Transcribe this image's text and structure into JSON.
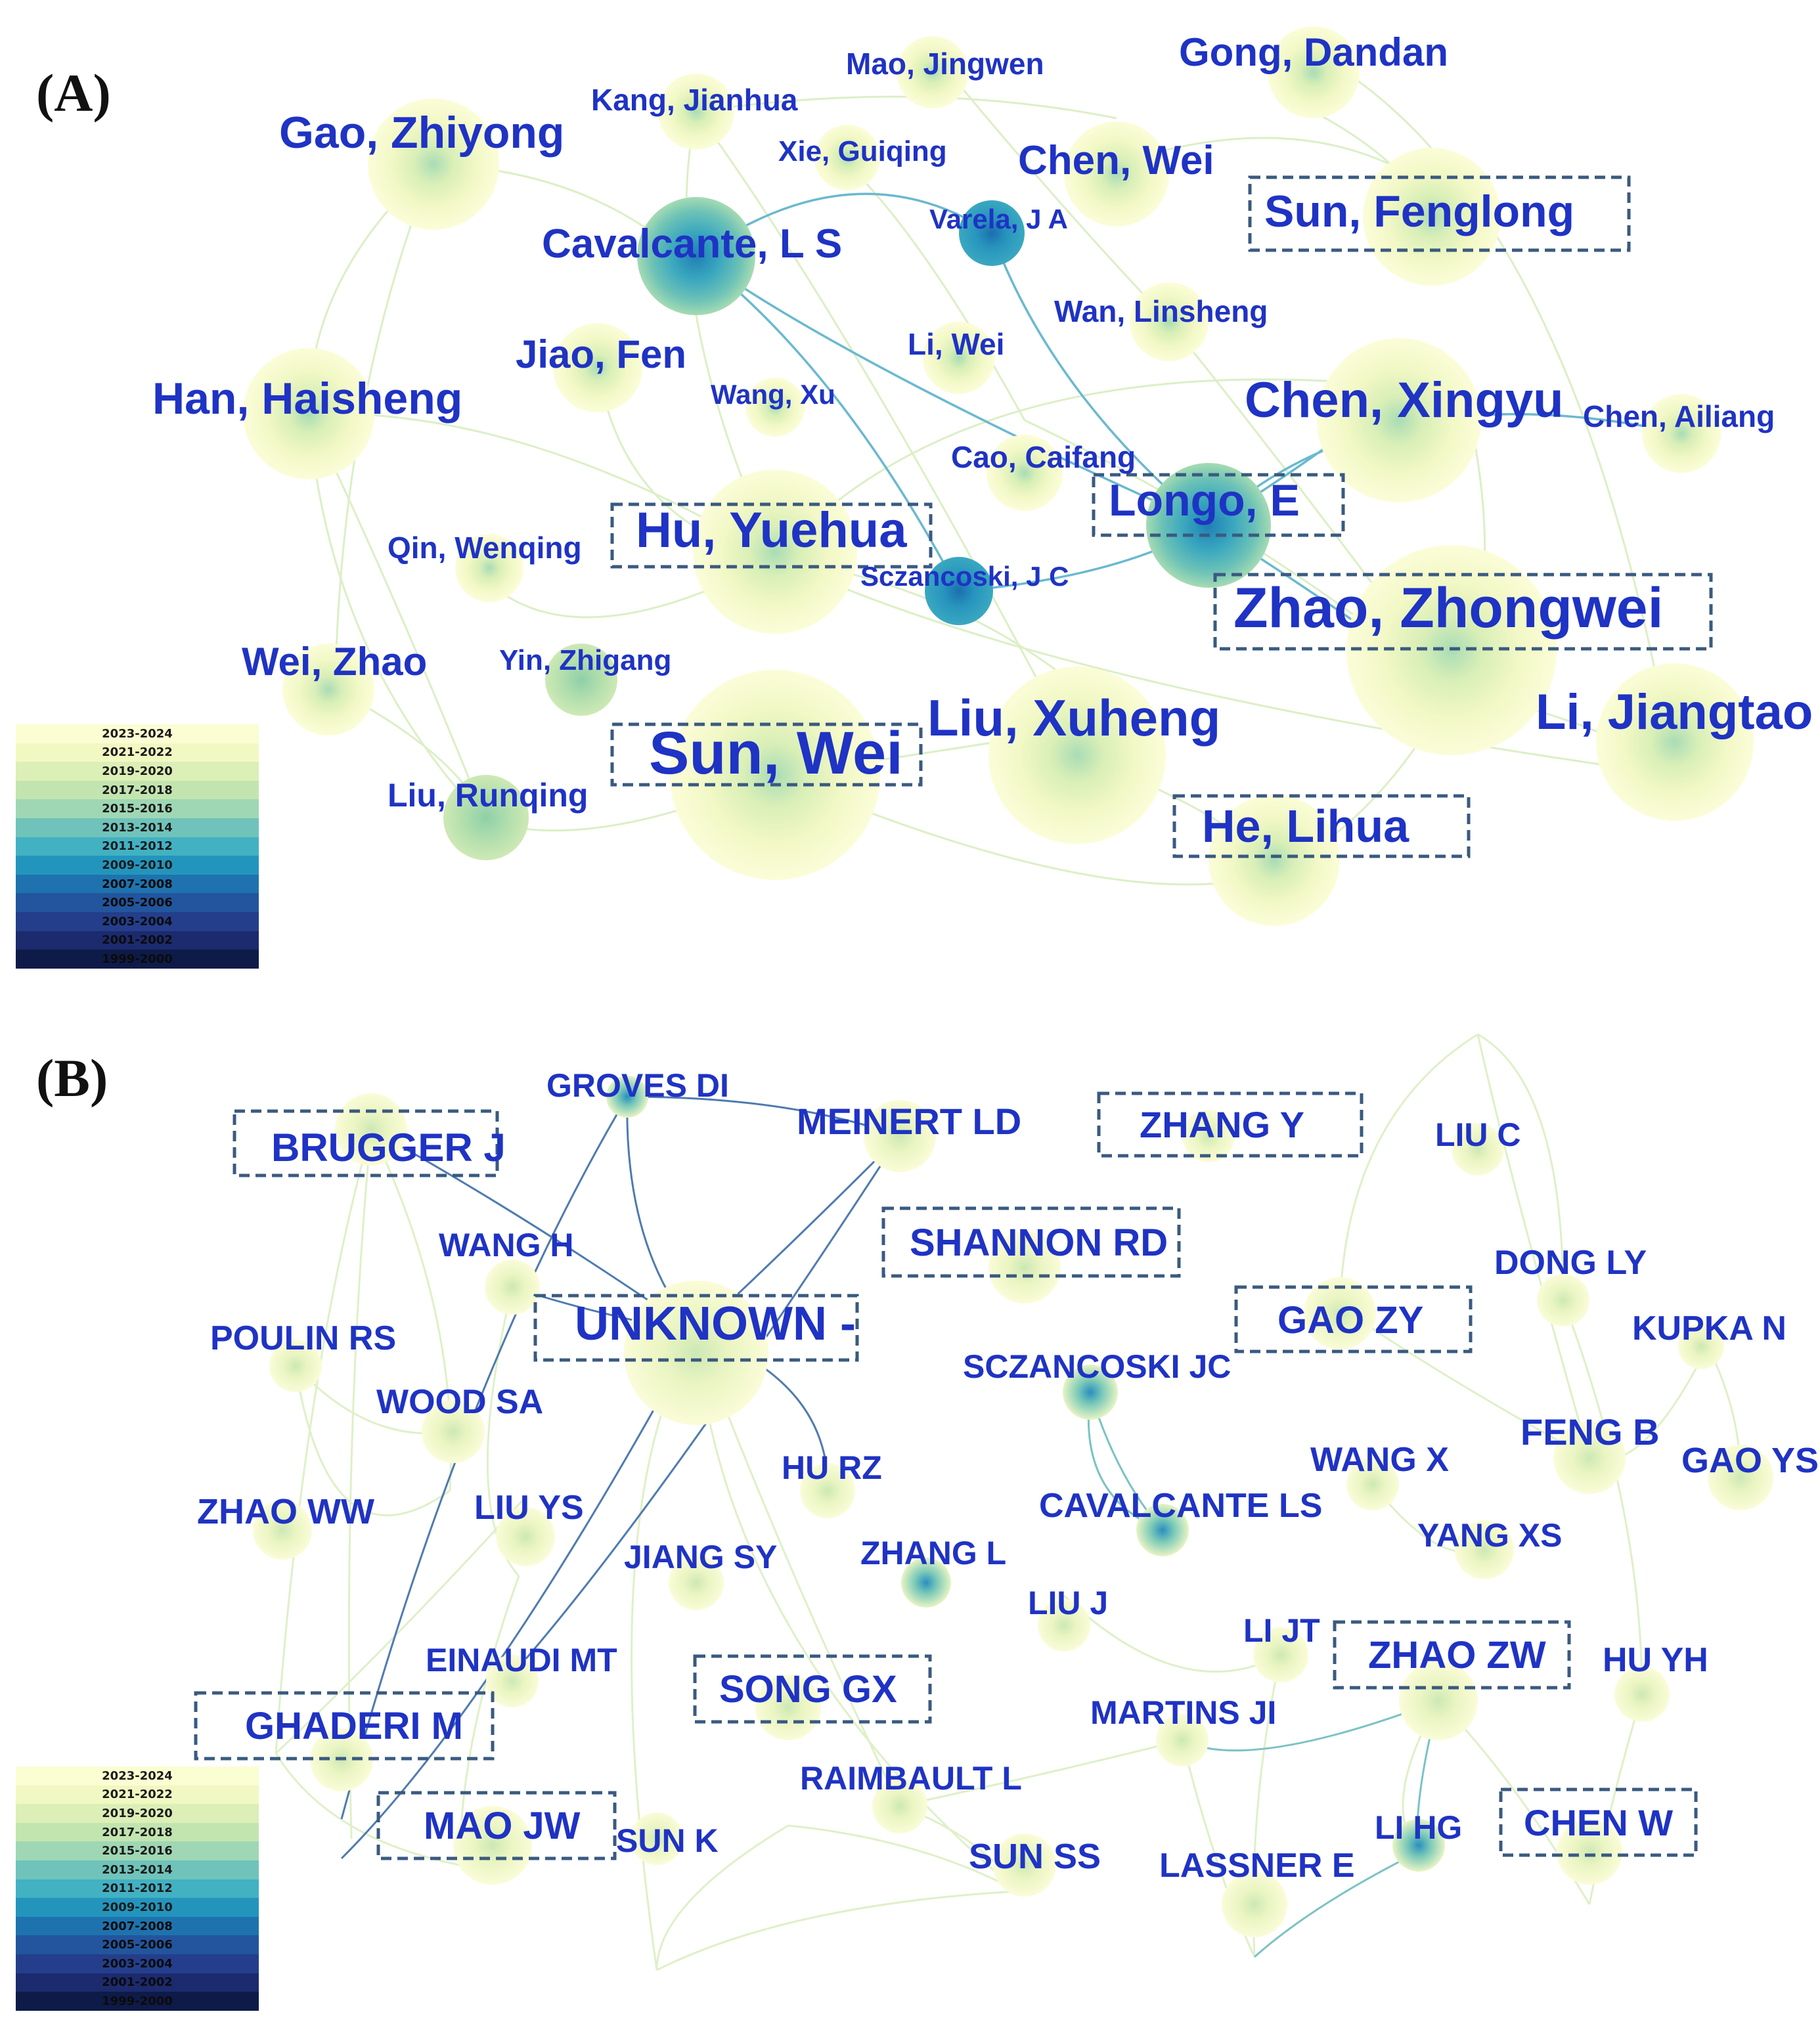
{
  "panel_a": {
    "label": "(A)",
    "nodes": [
      {
        "id": "gao-zhiyong",
        "label": "Gao, Zhiyong"
      },
      {
        "id": "kang-jianhua",
        "label": "Kang, Jianhua"
      },
      {
        "id": "mao-jingwen",
        "label": "Mao, Jingwen"
      },
      {
        "id": "gong-dandan",
        "label": "Gong, Dandan"
      },
      {
        "id": "xie-guiqing",
        "label": "Xie, Guiqing"
      },
      {
        "id": "chen-wei",
        "label": "Chen, Wei"
      },
      {
        "id": "sun-fenglong",
        "label": "Sun, Fenglong"
      },
      {
        "id": "cavalcante-ls",
        "label": "Cavalcante, L S"
      },
      {
        "id": "varela-ja",
        "label": "Varela, J A"
      },
      {
        "id": "wan-linsheng",
        "label": "Wan, Linsheng"
      },
      {
        "id": "li-wei",
        "label": "Li, Wei"
      },
      {
        "id": "jiao-fen",
        "label": "Jiao, Fen"
      },
      {
        "id": "han-haisheng",
        "label": "Han, Haisheng"
      },
      {
        "id": "wang-xu",
        "label": "Wang, Xu"
      },
      {
        "id": "chen-xingyu",
        "label": "Chen, Xingyu"
      },
      {
        "id": "chen-ailiang",
        "label": "Chen, Ailiang"
      },
      {
        "id": "cao-caifang",
        "label": "Cao, Caifang"
      },
      {
        "id": "longo-e",
        "label": "Longo, E"
      },
      {
        "id": "hu-yuehua",
        "label": "Hu, Yuehua"
      },
      {
        "id": "qin-wenqing",
        "label": "Qin, Wenqing"
      },
      {
        "id": "sczancoski-jc",
        "label": "Sczancoski, J C"
      },
      {
        "id": "zhao-zhongwei",
        "label": "Zhao, Zhongwei"
      },
      {
        "id": "wei-zhao",
        "label": "Wei, Zhao"
      },
      {
        "id": "yin-zhigang",
        "label": "Yin, Zhigang"
      },
      {
        "id": "liu-xuheng",
        "label": "Liu, Xuheng"
      },
      {
        "id": "li-jiangtao",
        "label": "Li, Jiangtao"
      },
      {
        "id": "sun-wei",
        "label": "Sun, Wei"
      },
      {
        "id": "liu-runqing",
        "label": "Liu, Runqing"
      },
      {
        "id": "he-lihua",
        "label": "He, Lihua"
      }
    ]
  },
  "panel_b": {
    "label": "(B)",
    "nodes": [
      {
        "id": "groves-di",
        "label": "GROVES DI"
      },
      {
        "id": "brugger-j",
        "label": "BRUGGER J"
      },
      {
        "id": "meinert-ld",
        "label": "MEINERT LD"
      },
      {
        "id": "zhang-y",
        "label": "ZHANG Y"
      },
      {
        "id": "liu-c",
        "label": "LIU C"
      },
      {
        "id": "wang-h",
        "label": "WANG H"
      },
      {
        "id": "shannon-rd",
        "label": "SHANNON RD"
      },
      {
        "id": "dong-ly",
        "label": "DONG LY"
      },
      {
        "id": "gao-zy",
        "label": "GAO ZY"
      },
      {
        "id": "unknown",
        "label": "UNKNOWN -"
      },
      {
        "id": "poulin-rs",
        "label": "POULIN RS"
      },
      {
        "id": "kupka-n",
        "label": "KUPKA N"
      },
      {
        "id": "sczancoski-jc-b",
        "label": "SCZANCOSKI JC"
      },
      {
        "id": "wood-sa",
        "label": "WOOD SA"
      },
      {
        "id": "wang-x",
        "label": "WANG X"
      },
      {
        "id": "feng-b",
        "label": "FENG B"
      },
      {
        "id": "gao-ys",
        "label": "GAO YS"
      },
      {
        "id": "hu-rz",
        "label": "HU RZ"
      },
      {
        "id": "zhao-ww",
        "label": "ZHAO WW"
      },
      {
        "id": "liu-ys",
        "label": "LIU YS"
      },
      {
        "id": "cavalcante-ls-b",
        "label": "CAVALCANTE LS"
      },
      {
        "id": "yang-xs",
        "label": "YANG XS"
      },
      {
        "id": "jiang-sy",
        "label": "JIANG SY"
      },
      {
        "id": "zhang-l",
        "label": "ZHANG L"
      },
      {
        "id": "liu-j",
        "label": "LIU J"
      },
      {
        "id": "li-jt",
        "label": "LI JT"
      },
      {
        "id": "zhao-zw",
        "label": "ZHAO ZW"
      },
      {
        "id": "hu-yh",
        "label": "HU YH"
      },
      {
        "id": "einaudi-mt",
        "label": "EINAUDI MT"
      },
      {
        "id": "song-gx",
        "label": "SONG GX"
      },
      {
        "id": "martins-ji",
        "label": "MARTINS JI"
      },
      {
        "id": "ghaderi-m",
        "label": "GHADERI M"
      },
      {
        "id": "raimbault-l",
        "label": "RAIMBAULT L"
      },
      {
        "id": "mao-jw",
        "label": "MAO JW"
      },
      {
        "id": "sun-k",
        "label": "SUN K"
      },
      {
        "id": "sun-ss",
        "label": "SUN SS"
      },
      {
        "id": "li-hg",
        "label": "LI HG"
      },
      {
        "id": "chen-w",
        "label": "CHEN W"
      },
      {
        "id": "lassner-e",
        "label": "LASSNER E"
      }
    ]
  },
  "legend": {
    "entries": [
      {
        "label": "2023-2024",
        "color": "#fbfdd2"
      },
      {
        "label": "2021-2022",
        "color": "#f1f8c2"
      },
      {
        "label": "2019-2020",
        "color": "#dcefb6"
      },
      {
        "label": "2017-2018",
        "color": "#c2e5b0"
      },
      {
        "label": "2015-2016",
        "color": "#9fd7b4"
      },
      {
        "label": "2013-2014",
        "color": "#6fc3ba"
      },
      {
        "label": "2011-2012",
        "color": "#42b1c2"
      },
      {
        "label": "2009-2010",
        "color": "#2395bd"
      },
      {
        "label": "2007-2008",
        "color": "#1e73ae"
      },
      {
        "label": "2005-2006",
        "color": "#22559d"
      },
      {
        "label": "2003-2004",
        "color": "#243e8c"
      },
      {
        "label": "2001-2002",
        "color": "#1c2a6e"
      },
      {
        "label": "1999-2000",
        "color": "#0e1b48"
      }
    ]
  }
}
